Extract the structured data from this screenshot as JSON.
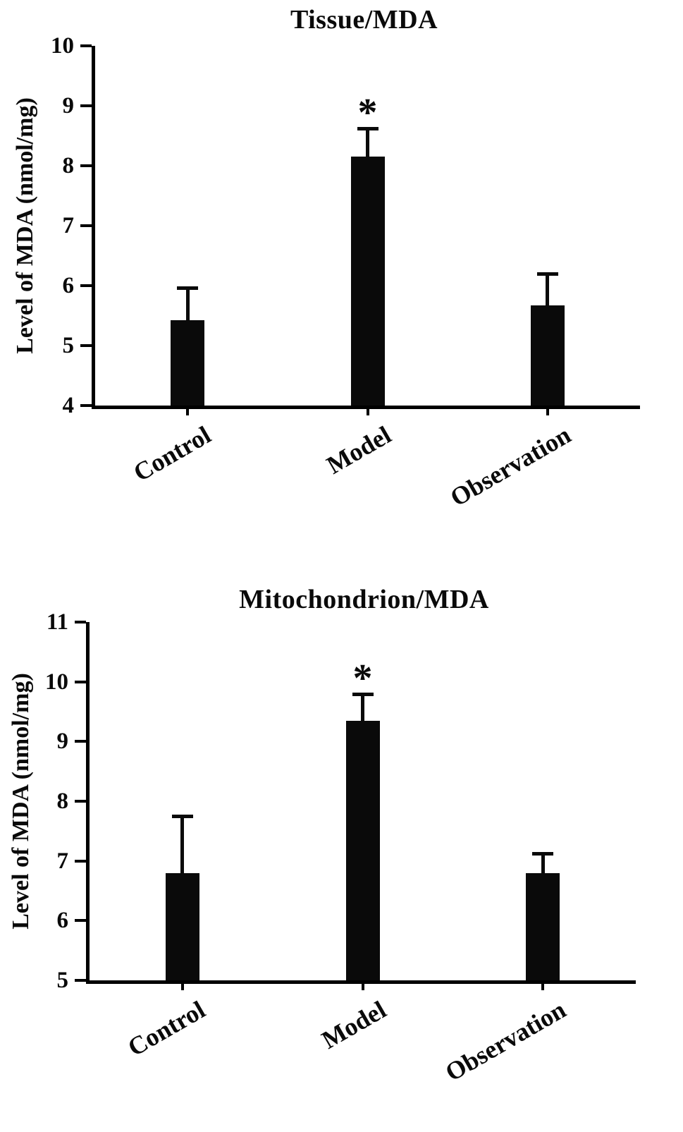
{
  "figure_caption": "",
  "accent_color": "#0a0a0a",
  "chart_data": [
    {
      "type": "bar",
      "title": "Tissue/MDA",
      "xlabel": "",
      "ylabel": "Level of MDA (nmol/mg)",
      "categories": [
        "Control",
        "Model",
        "Observation"
      ],
      "values": [
        5.42,
        8.15,
        5.67
      ],
      "errors": [
        0.57,
        0.5,
        0.55
      ],
      "significance": [
        "",
        "*",
        ""
      ],
      "ylim": [
        4,
        10
      ],
      "yticks": [
        4,
        5,
        6,
        7,
        8,
        9,
        10
      ],
      "bar_color": "#0a0a0a",
      "grid": false,
      "legend": "none"
    },
    {
      "type": "bar",
      "title": "Mitochondrion/MDA",
      "xlabel": "",
      "ylabel": "Level of MDA (nmol/mg)",
      "categories": [
        "Control",
        "Model",
        "Observation"
      ],
      "values": [
        6.8,
        9.35,
        6.8
      ],
      "errors": [
        0.97,
        0.47,
        0.35
      ],
      "significance": [
        "",
        "*",
        ""
      ],
      "ylim": [
        5,
        11
      ],
      "yticks": [
        5,
        6,
        7,
        8,
        9,
        10,
        11
      ],
      "bar_color": "#0a0a0a",
      "grid": false,
      "legend": "none"
    }
  ]
}
